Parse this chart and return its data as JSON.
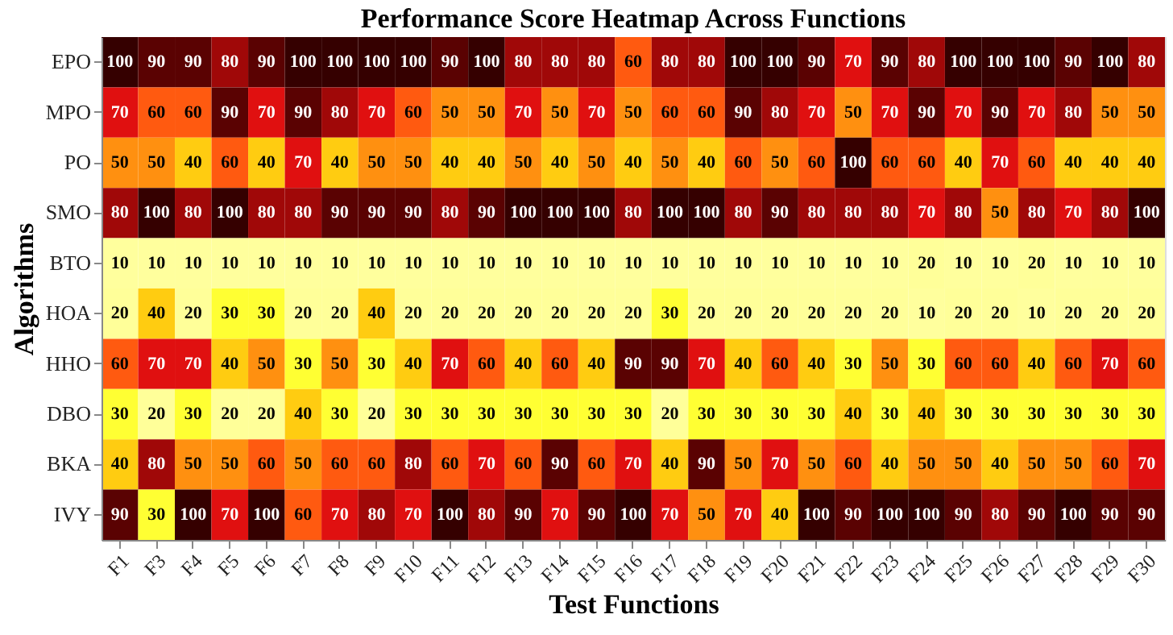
{
  "chart_data": {
    "type": "heatmap",
    "title": "Performance Score Heatmap Across Functions",
    "xlabel": "Test Functions",
    "ylabel": "Algorithms",
    "categories": [
      "F1",
      "F3",
      "F4",
      "F5",
      "F6",
      "F7",
      "F8",
      "F9",
      "F10",
      "F11",
      "F12",
      "F13",
      "F14",
      "F15",
      "F16",
      "F17",
      "F18",
      "F19",
      "F20",
      "F21",
      "F22",
      "F23",
      "F24",
      "F25",
      "F26",
      "F27",
      "F28",
      "F29",
      "F30"
    ],
    "y_categories": [
      "EPO",
      "MPO",
      "PO",
      "SMO",
      "BTO",
      "HOA",
      "HHO",
      "DBO",
      "BKA",
      "IVY"
    ],
    "cells": [
      [
        100,
        90,
        90,
        80,
        90,
        100,
        100,
        100,
        100,
        90,
        100,
        80,
        80,
        80,
        60,
        80,
        80,
        100,
        100,
        90,
        70,
        90,
        80,
        100,
        100,
        100,
        90,
        100,
        80
      ],
      [
        70,
        60,
        60,
        90,
        70,
        90,
        80,
        70,
        60,
        50,
        50,
        70,
        50,
        70,
        50,
        60,
        60,
        90,
        80,
        70,
        50,
        70,
        90,
        70,
        90,
        70,
        80,
        50,
        50
      ],
      [
        50,
        50,
        40,
        60,
        40,
        70,
        40,
        50,
        50,
        40,
        40,
        50,
        40,
        50,
        40,
        50,
        40,
        60,
        50,
        60,
        100,
        60,
        60,
        40,
        70,
        60,
        40,
        40,
        40
      ],
      [
        80,
        100,
        80,
        100,
        80,
        80,
        90,
        90,
        90,
        80,
        90,
        100,
        100,
        100,
        80,
        100,
        100,
        80,
        90,
        80,
        80,
        80,
        70,
        80,
        50,
        80,
        70,
        80,
        100
      ],
      [
        10,
        10,
        10,
        10,
        10,
        10,
        10,
        10,
        10,
        10,
        10,
        10,
        10,
        10,
        10,
        10,
        10,
        10,
        10,
        10,
        10,
        10,
        20,
        10,
        10,
        20,
        10,
        10,
        10
      ],
      [
        20,
        40,
        20,
        30,
        30,
        20,
        20,
        40,
        20,
        20,
        20,
        20,
        20,
        20,
        20,
        30,
        20,
        20,
        20,
        20,
        20,
        20,
        10,
        20,
        20,
        10,
        20,
        20,
        20
      ],
      [
        60,
        70,
        70,
        40,
        50,
        30,
        50,
        30,
        40,
        70,
        60,
        40,
        60,
        40,
        90,
        90,
        70,
        40,
        60,
        40,
        30,
        50,
        30,
        60,
        60,
        40,
        60,
        70,
        60
      ],
      [
        30,
        20,
        30,
        20,
        20,
        40,
        30,
        20,
        30,
        30,
        30,
        30,
        30,
        30,
        30,
        20,
        30,
        30,
        30,
        30,
        40,
        30,
        40,
        30,
        30,
        30,
        30,
        30,
        30
      ],
      [
        40,
        80,
        50,
        50,
        60,
        50,
        60,
        60,
        80,
        60,
        70,
        60,
        90,
        60,
        70,
        40,
        90,
        50,
        70,
        50,
        60,
        40,
        50,
        50,
        40,
        50,
        50,
        60,
        70
      ],
      [
        90,
        30,
        100,
        70,
        100,
        60,
        70,
        80,
        70,
        100,
        80,
        90,
        70,
        90,
        100,
        70,
        50,
        70,
        40,
        100,
        90,
        100,
        100,
        90,
        80,
        90,
        100,
        90,
        90
      ]
    ],
    "data_labels": true
  }
}
